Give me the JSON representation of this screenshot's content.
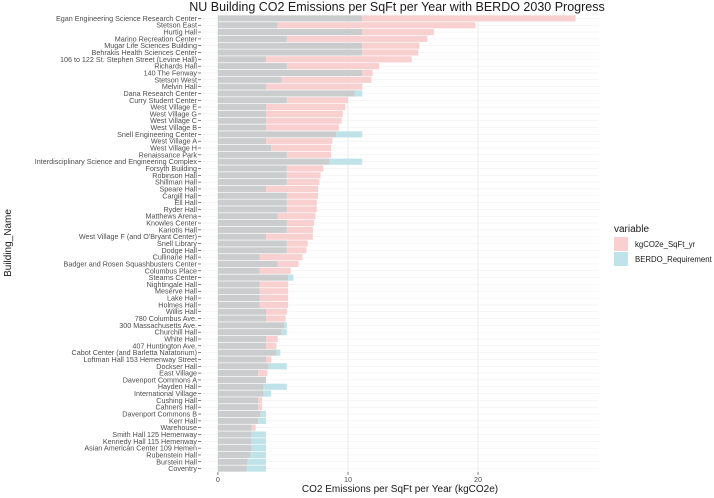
{
  "chart_data": {
    "type": "bar",
    "orientation": "horizontal",
    "title": "NU Building CO2 Emissions per SqFt per Year with BERDO 2030 Progress",
    "xlabel": "CO2 Emissions per SqFt per Year (kgCO2e)",
    "ylabel": "Building_Name",
    "xlim": [
      -1.3,
      29.3
    ],
    "xticks": [
      0,
      10,
      20
    ],
    "grid": true,
    "legend": {
      "title": "variable",
      "position": "right"
    },
    "colors": {
      "emissions": "#f8d0d0",
      "requirement": "#bfe3e8",
      "overlap": "#cacccd",
      "background": "#ffffff",
      "gridline": "#ececec"
    },
    "categories": [
      "Egan Engineering Science Research Center",
      "Stetson East",
      "Hurtig Hall",
      "Marino Recreation Center",
      "Mugar Life Sciences Building",
      "Behrakis Health Sciences Center",
      "106 to 122 St. Stephen Street  (Levine Hall)",
      "Richards Hall",
      "140 The Fenway",
      "Stetson West",
      "Melvin Hall",
      "Dana Research Center",
      "Curry Student Center",
      "West Village E",
      "West Village G",
      "West Village C",
      "West Village B",
      "Snell Engineering Center",
      "West Village A",
      "West Village H",
      "Renaissance Park",
      "Interdisciplinary Science and Engineering Complex",
      "Forsyth Building",
      "Robinson Hall",
      "Shillman Hall",
      "Speare Hall",
      "Cargill Hall",
      "Ell Hall",
      "Ryder Hall",
      "Matthews Arena",
      "Knowles Center",
      "Kariotis Hall",
      "West Village F (and O'Bryant Center)",
      "Snell Library",
      "Dodge Hall",
      "Cullinane Hall",
      "Badger and Rosen Squashbusters Center",
      "Columbus Place",
      "Stearns Center",
      "Nightingale Hall",
      "Meserve Hall",
      "Lake Hall",
      "Holmes Hall",
      "Willis Hall",
      "780 Columbus Ave.",
      "300 Massachusetts Ave.",
      "Churchill Hall",
      "White Hall",
      "407 Huntington Ave.",
      "Cabot Center (and Barletta Natatorium)",
      "Loftman Hall 153 Hemenway Street",
      "Dockser Hall",
      "East Village",
      "Davenport Commons A",
      "Hayden Hall",
      "International Village",
      "Cushing Hall",
      "Cahners Hall",
      "Davenport Commons B",
      "Kerr Hall",
      "Warehouse",
      "Smith Hall 125 Hemenway",
      "Kennedy Hall 115 Hemenway",
      "Asian American Center 109 Hemen",
      "Rubenstein Hall",
      "Burstein Hall",
      "Coventry"
    ],
    "series": [
      {
        "name": "kgCO2e_SqFt_yr",
        "values": [
          27.5,
          19.8,
          16.6,
          16.1,
          15.5,
          15.4,
          14.9,
          12.4,
          11.9,
          11.8,
          11.1,
          10.5,
          10.0,
          9.8,
          9.6,
          9.5,
          9.3,
          9.1,
          8.8,
          8.7,
          8.7,
          8.6,
          8.1,
          7.9,
          7.8,
          7.7,
          7.7,
          7.6,
          7.6,
          7.5,
          7.4,
          7.3,
          7.3,
          6.9,
          6.8,
          6.5,
          6.2,
          5.6,
          5.4,
          5.4,
          5.4,
          5.4,
          5.4,
          5.3,
          5.2,
          5.1,
          4.9,
          4.6,
          4.5,
          4.5,
          4.1,
          3.9,
          3.8,
          3.7,
          3.5,
          3.5,
          3.4,
          3.4,
          3.3,
          3.1,
          2.9,
          2.6,
          2.6,
          2.6,
          2.5,
          2.3,
          2.2
        ]
      },
      {
        "name": "BERDO_Requirement",
        "values": [
          11.1,
          4.6,
          11.1,
          5.3,
          11.1,
          11.1,
          3.7,
          5.3,
          11.1,
          4.9,
          3.7,
          11.1,
          5.3,
          3.7,
          3.7,
          3.7,
          3.7,
          11.1,
          3.7,
          4.1,
          5.3,
          11.1,
          5.3,
          5.3,
          5.3,
          3.7,
          5.3,
          5.3,
          5.3,
          4.6,
          5.3,
          5.3,
          3.7,
          5.3,
          5.3,
          3.2,
          4.6,
          3.2,
          5.8,
          3.2,
          3.2,
          3.2,
          3.2,
          3.7,
          3.7,
          5.3,
          5.3,
          3.7,
          3.7,
          4.8,
          3.7,
          5.3,
          3.1,
          3.7,
          5.3,
          4.1,
          3.1,
          3.1,
          3.7,
          3.7,
          2.6,
          3.7,
          3.7,
          3.7,
          3.7,
          3.7,
          3.7
        ]
      }
    ]
  }
}
